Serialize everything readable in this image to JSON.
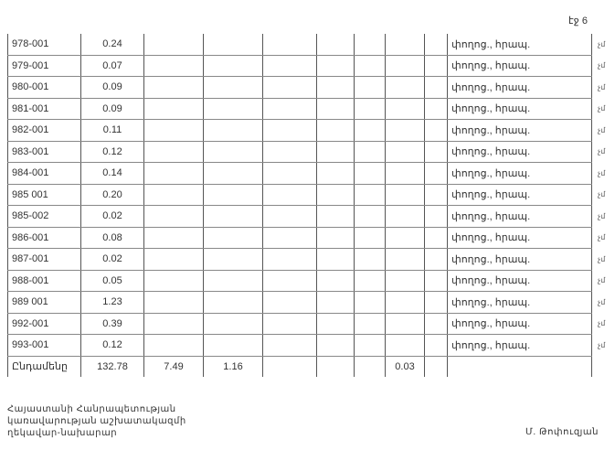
{
  "page_number": "էջ 6",
  "rows": [
    {
      "code": "978-001",
      "value": "0.24",
      "type": "փողոց., հրապ.",
      "note": "չմ"
    },
    {
      "code": "979-001",
      "value": "0.07",
      "type": "փողոց., հրապ.",
      "note": "չմ"
    },
    {
      "code": "980-001",
      "value": "0.09",
      "type": "փողոց., հրապ.",
      "note": "չմ"
    },
    {
      "code": "981-001",
      "value": "0.09",
      "type": "փողոց., հրապ.",
      "note": "չմ"
    },
    {
      "code": "982-001",
      "value": "0.11",
      "type": "փողոց., հրապ.",
      "note": "չմ"
    },
    {
      "code": "983-001",
      "value": "0.12",
      "type": "փողոց., հրապ.",
      "note": "չմ"
    },
    {
      "code": "984-001",
      "value": "0.14",
      "type": "փողոց., հրապ.",
      "note": "չմ"
    },
    {
      "code": "985 001",
      "value": "0.20",
      "type": "փողոց., հրապ.",
      "note": "չմ"
    },
    {
      "code": "985-002",
      "value": "0.02",
      "type": "փողոց., հրապ.",
      "note": "չմ"
    },
    {
      "code": "986-001",
      "value": "0.08",
      "type": "փողոց., հրապ.",
      "note": "չմ"
    },
    {
      "code": "987-001",
      "value": "0.02",
      "type": "փողոց., հրապ.",
      "note": "չմ"
    },
    {
      "code": "988-001",
      "value": "0.05",
      "type": "փողոց., հրապ.",
      "note": "չմ"
    },
    {
      "code": "989 001",
      "value": "1.23",
      "type": "փողոց., հրապ.",
      "note": "չմ"
    },
    {
      "code": "992-001",
      "value": "0.39",
      "type": "փողոց., հրապ.",
      "note": "չմ"
    },
    {
      "code": "993-001",
      "value": "0.12",
      "type": "փողոց., հրապ.",
      "note": "չմ"
    }
  ],
  "total": {
    "label": "Ընդամենը",
    "c1": "132.78",
    "c2": "7.49",
    "c3": "1.16",
    "c4": "",
    "c5": "",
    "c6": "",
    "c7": "0.03"
  },
  "footer": {
    "title_lines": [
      "Հայաստանի Հանրապետության",
      "կառավարության աշխատակազմի",
      "ղեկավար-նախարար"
    ],
    "signature": "Մ. Թոփուզյան"
  }
}
